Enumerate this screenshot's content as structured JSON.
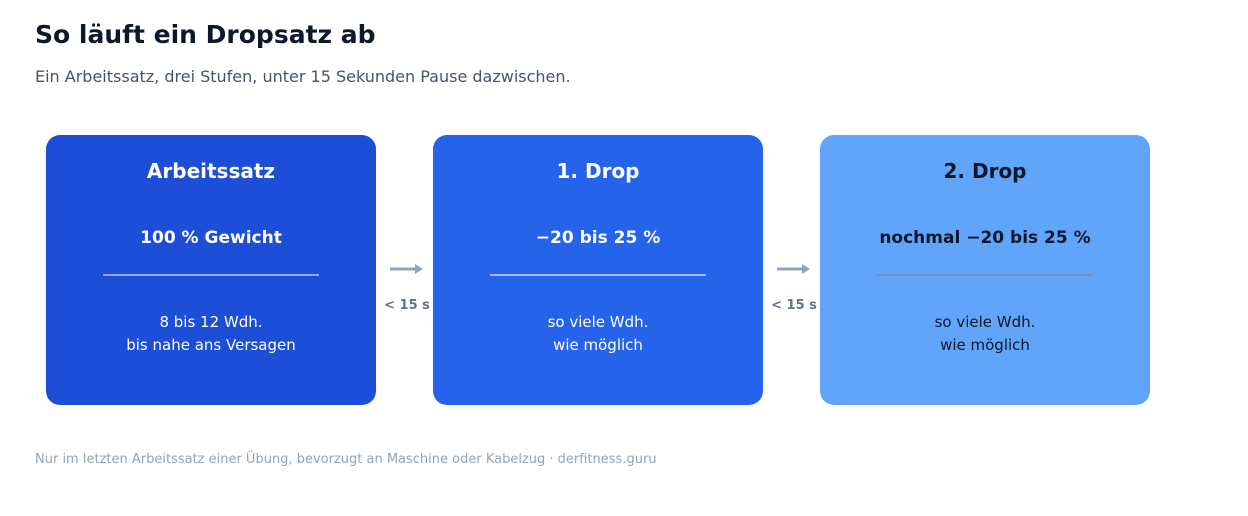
{
  "header": {
    "title": "So läuft ein Dropsatz ab",
    "subtitle": "Ein Arbeitssatz, drei Stufen, unter 15 Sekunden Pause dazwischen."
  },
  "steps": [
    {
      "name": "Arbeitssatz",
      "load": "100 % Gewicht",
      "reps": [
        "8 bis 12 Wdh.",
        "bis nahe ans Versagen"
      ]
    },
    {
      "name": "1. Drop",
      "load": "−20 bis 25 %",
      "reps": [
        "so viele Wdh.",
        "wie möglich"
      ]
    },
    {
      "name": "2. Drop",
      "load": "nochmal −20 bis 25 %",
      "reps": [
        "so viele Wdh.",
        "wie möglich"
      ]
    }
  ],
  "pauses": [
    "< 15 s",
    "< 15 s"
  ],
  "footer": "Nur im letzten Arbeitssatz einer Übung, bevorzugt an Maschine oder Kabelzug · derfitness.guru"
}
